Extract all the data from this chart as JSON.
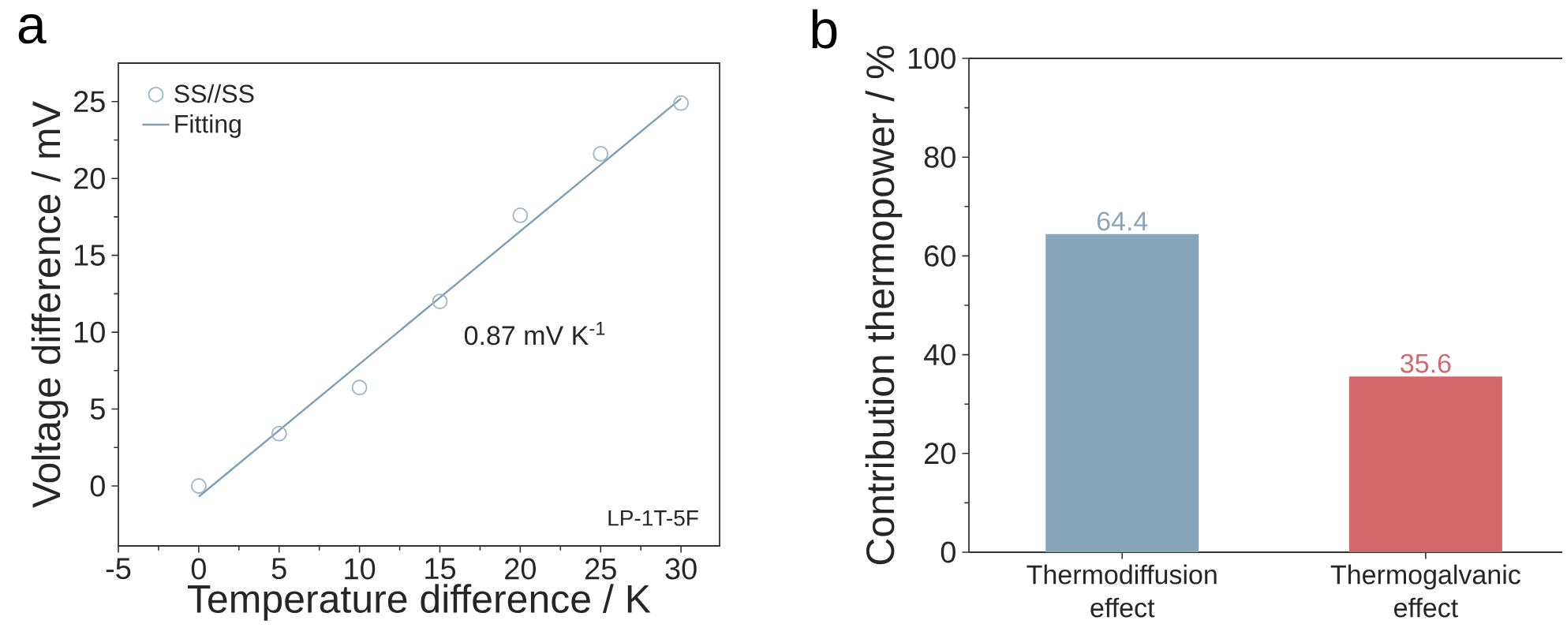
{
  "chart_data": [
    {
      "type": "scatter",
      "title": "a",
      "xlabel": "Temperature difference / K",
      "ylabel": "Voltage difference / mV",
      "xlim": [
        -5,
        32.4
      ],
      "ylim": [
        -3.9,
        27.5
      ],
      "xticks": [
        -5,
        0,
        5,
        10,
        15,
        20,
        25,
        30
      ],
      "yticks": [
        0,
        5,
        10,
        15,
        20,
        25
      ],
      "legend": "top left",
      "annotations": [
        "0.87 mV K$^{-1}$",
        "LP-1T-5F"
      ],
      "series": [
        {
          "name": "SS//SS",
          "type": "scatter",
          "marker": "circle",
          "color": "#9db5c8",
          "x": [
            0,
            5,
            10,
            15,
            20,
            25,
            30
          ],
          "values": [
            0,
            3.4,
            6.4,
            12.0,
            17.6,
            21.6,
            24.9
          ]
        },
        {
          "name": "Fitting",
          "type": "line",
          "marker": "none",
          "color": "#7f9fb5",
          "x": [
            0,
            30
          ],
          "values": [
            -0.7,
            25.2
          ]
        }
      ]
    },
    {
      "type": "bar",
      "title": "b",
      "ylabel": "Contribution thermopower / %",
      "categories": [
        "Thermodiffusion effect",
        "Thermogalvanic effect"
      ],
      "values": [
        64.4,
        35.6
      ],
      "colors": [
        "#87a5b9",
        "#d4676b"
      ],
      "ylim": [
        0,
        100
      ],
      "yticks": [
        0,
        20,
        40,
        60,
        80,
        100
      ],
      "data_labels": true
    }
  ]
}
